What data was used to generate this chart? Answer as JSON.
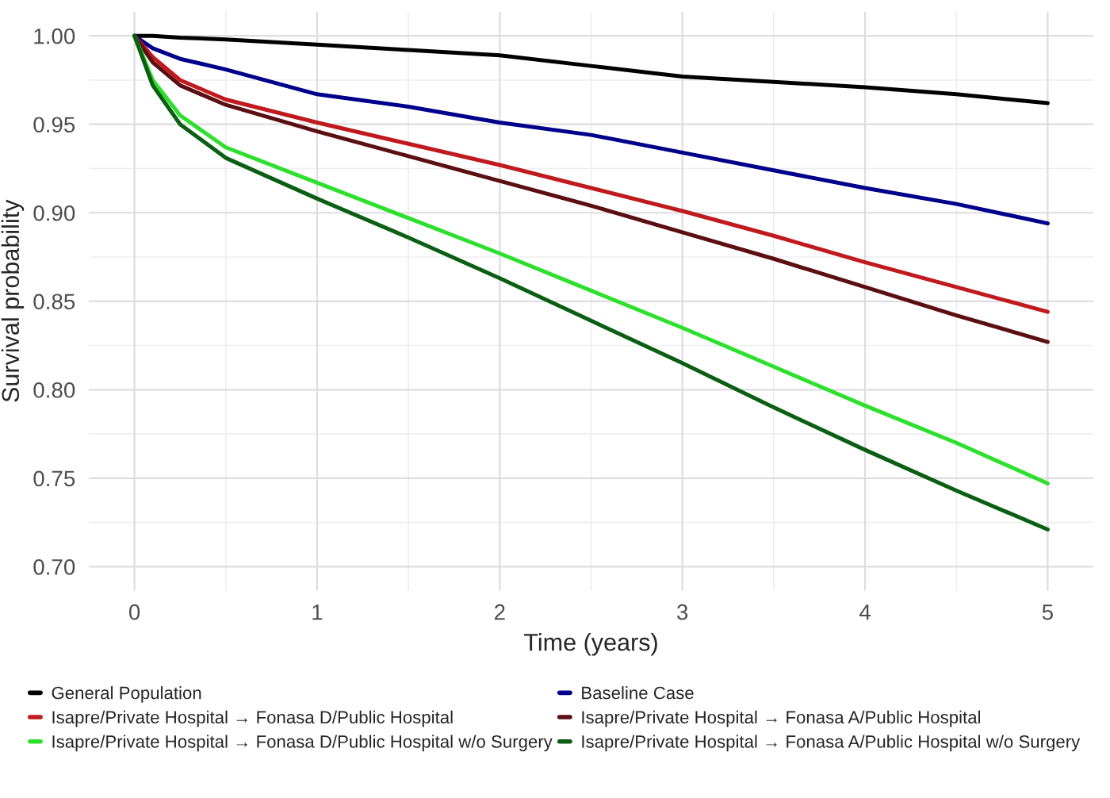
{
  "chart_data": {
    "type": "line",
    "xlabel": "Time (years)",
    "ylabel": "Survival probability",
    "x": [
      0,
      0.1,
      0.25,
      0.5,
      1,
      1.5,
      2,
      2.5,
      3,
      3.5,
      4,
      4.5,
      5
    ],
    "xlim": [
      -0.25,
      5.25
    ],
    "xticks": [
      0,
      1,
      2,
      3,
      4,
      5
    ],
    "ylim": [
      0.6865,
      1.0135
    ],
    "yticks": [
      {
        "value": 0.7,
        "label": "0.70"
      },
      {
        "value": 0.75,
        "label": "0.75"
      },
      {
        "value": 0.8,
        "label": "0.80"
      },
      {
        "value": 0.85,
        "label": "0.85"
      },
      {
        "value": 0.9,
        "label": "0.90"
      },
      {
        "value": 0.95,
        "label": "0.95"
      },
      {
        "value": 1.0,
        "label": "1.00"
      }
    ],
    "grid": true,
    "legend": "bottom",
    "marker": "none",
    "line_style": "solid",
    "series": [
      {
        "name": "General Population",
        "color": "#000000",
        "values": [
          1.0,
          1.0,
          0.999,
          0.998,
          0.995,
          0.992,
          0.989,
          0.983,
          0.977,
          0.974,
          0.971,
          0.967,
          0.962
        ]
      },
      {
        "name": "Baseline Case",
        "color": "#00008b",
        "values": [
          1.0,
          0.993,
          0.987,
          0.981,
          0.967,
          0.96,
          0.951,
          0.944,
          0.934,
          0.924,
          0.914,
          0.905,
          0.894
        ]
      },
      {
        "name": "Isapre/Private Hospital → Fonasa D/Public Hospital",
        "color": "#c0191e",
        "values": [
          1.0,
          0.988,
          0.975,
          0.964,
          0.951,
          0.939,
          0.927,
          0.914,
          0.901,
          0.887,
          0.872,
          0.858,
          0.844
        ]
      },
      {
        "name": "Isapre/Private Hospital → Fonasa A/Public Hospital",
        "color": "#5c0f12",
        "values": [
          1.0,
          0.985,
          0.972,
          0.961,
          0.946,
          0.932,
          0.918,
          0.904,
          0.889,
          0.874,
          0.858,
          0.842,
          0.827
        ]
      },
      {
        "name": "Isapre/Private Hospital → Fonasa D/Public Hospital w/o Surgery",
        "color": "#2ee02e",
        "values": [
          1.0,
          0.975,
          0.955,
          0.937,
          0.917,
          0.897,
          0.877,
          0.856,
          0.835,
          0.813,
          0.791,
          0.77,
          0.747
        ]
      },
      {
        "name": "Isapre/Private Hospital → Fonasa A/Public Hospital w/o Surgery",
        "color": "#0b5e13",
        "values": [
          1.0,
          0.972,
          0.95,
          0.931,
          0.908,
          0.886,
          0.863,
          0.839,
          0.815,
          0.79,
          0.766,
          0.743,
          0.721
        ]
      }
    ]
  }
}
